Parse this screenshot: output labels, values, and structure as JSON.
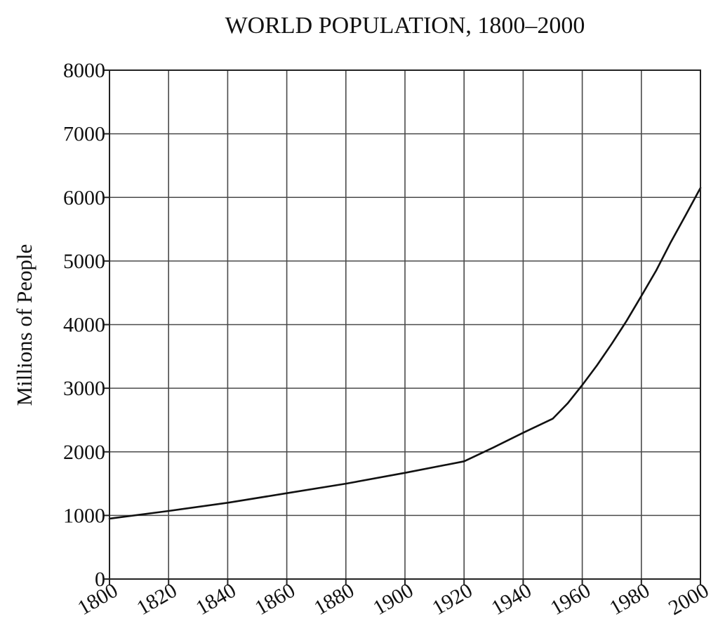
{
  "chart_data": {
    "type": "line",
    "title": "WORLD POPULATION, 1800–2000",
    "xlabel": "",
    "ylabel": "Millions of People",
    "xlim": [
      1800,
      2000
    ],
    "ylim": [
      0,
      8000
    ],
    "x_ticks": [
      "1800",
      "1820",
      "1840",
      "1860",
      "1880",
      "1900",
      "1920",
      "1940",
      "1960",
      "1980",
      "2000"
    ],
    "y_ticks": [
      "0",
      "1000",
      "2000",
      "3000",
      "4000",
      "5000",
      "6000",
      "7000",
      "8000"
    ],
    "grid": true,
    "legend": "none",
    "series": [
      {
        "x": [
          1800,
          1820,
          1840,
          1860,
          1880,
          1900,
          1920,
          1930,
          1940,
          1950,
          1955,
          1960,
          1965,
          1970,
          1975,
          1980,
          1985,
          1990,
          1995,
          2000
        ],
        "y": [
          950,
          1070,
          1200,
          1350,
          1500,
          1670,
          1850,
          2070,
          2300,
          2520,
          2760,
          3050,
          3360,
          3700,
          4060,
          4450,
          4850,
          5300,
          5720,
          6150
        ],
        "color": "#111111"
      }
    ]
  }
}
